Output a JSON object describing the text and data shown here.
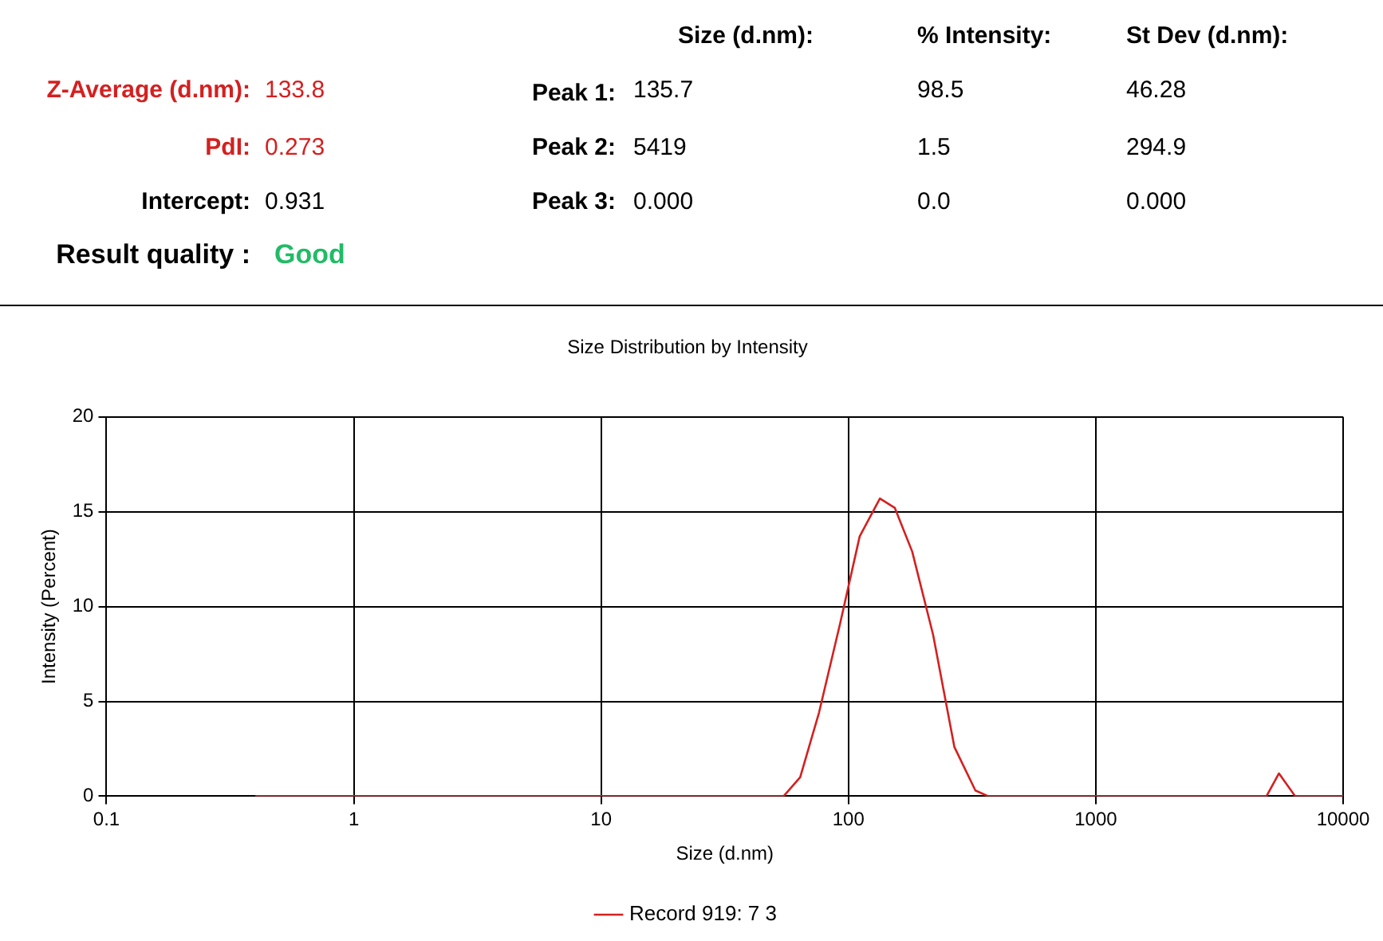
{
  "chart_data": {
    "type": "line",
    "title": "Size Distribution by Intensity",
    "xlabel": "Size (d.nm)",
    "ylabel": "Intensity (Percent)",
    "annotations": [
      "Z-Average (d.nm):",
      "133.8",
      "PdI:",
      "0.273",
      "Intercept:",
      "0.931",
      "Result quality :",
      "Good",
      "Size (d.nm):",
      "% Intensity:",
      "St Dev (d.nm):",
      "Peak 1:",
      "135.7",
      "98.5",
      "46.28",
      "Peak 2:",
      "5419",
      "1.5",
      "294.9",
      "Peak 3:",
      "0.000",
      "0.0",
      "0.000"
    ],
    "log": "x",
    "xlim": [
      0.1,
      10000
    ],
    "xticks": [
      0.1,
      1,
      10,
      100,
      1000,
      10000
    ],
    "ylim": [
      0,
      20
    ],
    "yticks": [
      0,
      5,
      10,
      15,
      20
    ],
    "grid": true,
    "legend": "bottom",
    "marker": "none",
    "series": [
      {
        "name": "Record 919: 7 3",
        "color": "#d42020",
        "x": [
          0.4,
          54.7,
          63.8,
          76,
          92.5,
          111,
          134,
          154,
          181,
          220,
          268,
          326,
          367,
          4900,
          5500,
          6400,
          10000
        ],
        "values": [
          0,
          0,
          1.0,
          4.4,
          9.1,
          13.7,
          15.7,
          15.2,
          12.9,
          8.5,
          2.6,
          0.3,
          0,
          0,
          1.2,
          0,
          0
        ]
      }
    ]
  }
}
